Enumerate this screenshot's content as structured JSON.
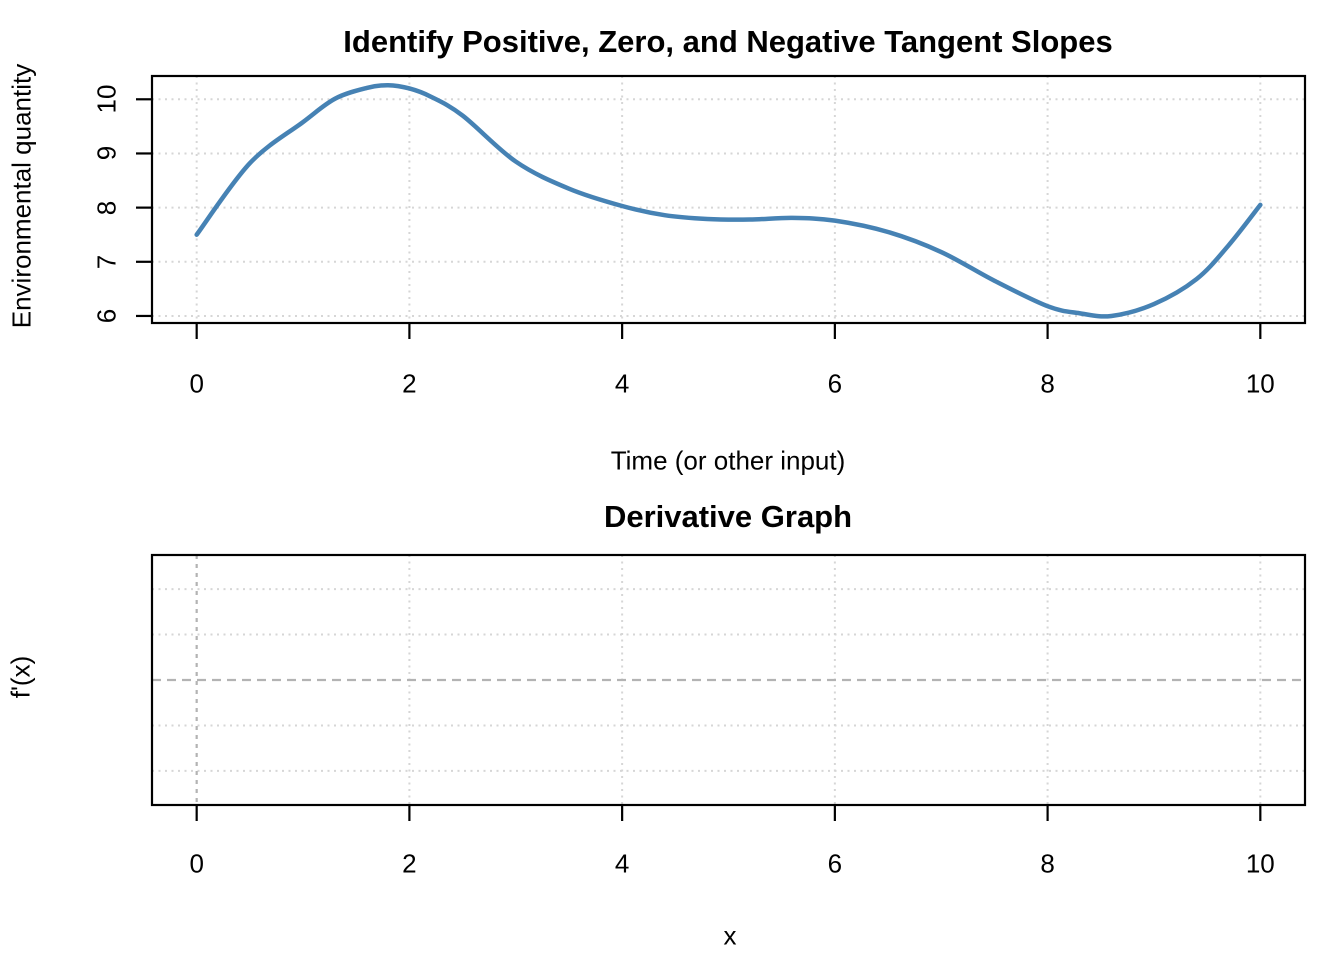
{
  "figure": {
    "background": "#ffffff",
    "axis_color": "#000000",
    "grid_color": "#d6d6d6",
    "reference_line_color": "#b3b3b3"
  },
  "chart_data": [
    {
      "type": "line",
      "title": "Identify Positive, Zero, and Negative Tangent Slopes",
      "xlabel": "Time (or other input)",
      "ylabel": "Environmental quantity",
      "xlim": [
        -0.42,
        10.42
      ],
      "ylim": [
        5.87,
        10.43
      ],
      "xticks": [
        0,
        2,
        4,
        6,
        8,
        10
      ],
      "yticks": [
        6,
        7,
        8,
        9,
        10
      ],
      "grid": {
        "on": true,
        "style": "dotted",
        "color": "#d6d6d6",
        "x_at": [
          0,
          2,
          4,
          6,
          8,
          10
        ],
        "y_at": [
          6,
          7,
          8,
          9,
          10
        ]
      },
      "reference_lines": [],
      "legend": "none",
      "series": [
        {
          "name": "environmental-quantity-curve",
          "color": "#4682B4",
          "width": 4.5,
          "x": [
            0,
            0.5,
            1.0,
            1.3,
            1.6,
            1.8,
            2.0,
            2.2,
            2.5,
            3.0,
            3.5,
            4.0,
            4.4,
            4.8,
            5.2,
            5.6,
            6.0,
            6.5,
            7.0,
            7.5,
            8.0,
            8.3,
            8.6,
            9.0,
            9.4,
            9.7,
            10.0
          ],
          "y": [
            7.5,
            8.82,
            9.58,
            10.01,
            10.21,
            10.26,
            10.2,
            10.05,
            9.7,
            8.85,
            8.35,
            8.03,
            7.86,
            7.79,
            7.78,
            7.81,
            7.76,
            7.55,
            7.18,
            6.65,
            6.18,
            6.05,
            6.0,
            6.22,
            6.68,
            7.3,
            8.05
          ]
        }
      ]
    },
    {
      "type": "line",
      "title": "Derivative Graph",
      "xlabel": "x",
      "ylabel": "f'(x)",
      "xlim": [
        -0.42,
        10.42
      ],
      "ylim": [
        -2.75,
        2.75
      ],
      "xticks": [
        0,
        2,
        4,
        6,
        8,
        10
      ],
      "yticks": [],
      "grid": {
        "on": true,
        "style": "dotted",
        "color": "#d6d6d6",
        "x_at": [
          2,
          4,
          6,
          8,
          10
        ],
        "y_at": [
          -2,
          -1,
          1,
          2
        ]
      },
      "reference_lines": [
        {
          "axis": "h",
          "value": 0,
          "style": "dashed",
          "color": "#b3b3b3"
        },
        {
          "axis": "v",
          "value": 0,
          "style": "dashed-short",
          "color": "#b3b3b3"
        }
      ],
      "legend": "none",
      "series": []
    }
  ]
}
